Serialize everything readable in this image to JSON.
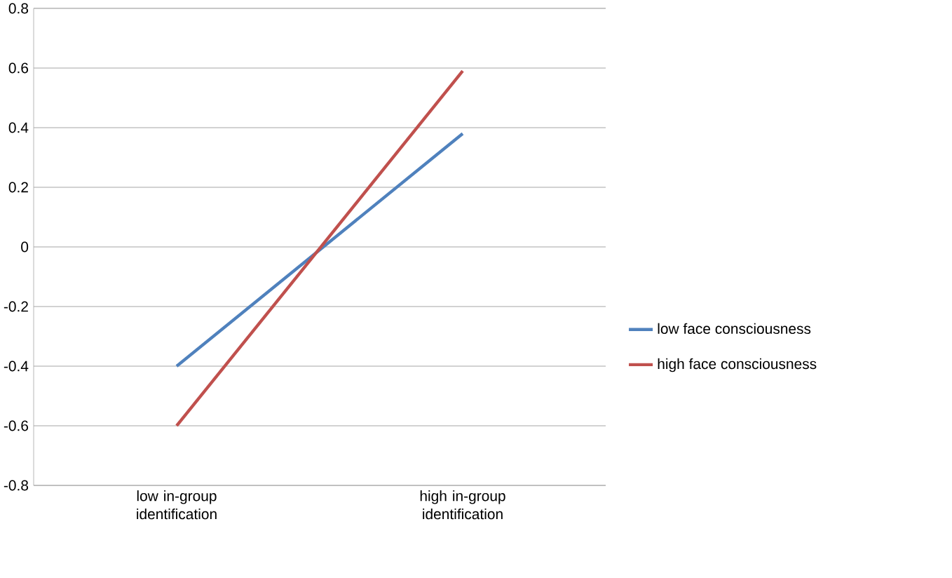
{
  "chart_data": {
    "type": "line",
    "categories": [
      "low in-group identification",
      "high in-group identification"
    ],
    "series": [
      {
        "name": "low face consciousness",
        "color": "#4f81bd",
        "values": [
          -0.4,
          0.38
        ]
      },
      {
        "name": "high face consciousness",
        "color": "#c0504d",
        "values": [
          -0.6,
          0.59
        ]
      }
    ],
    "ylim": [
      -0.8,
      0.8
    ],
    "yticks": [
      -0.8,
      -0.6,
      -0.4,
      -0.2,
      0,
      0.2,
      0.4,
      0.6,
      0.8
    ],
    "grid": "y",
    "legend": "right",
    "marker": "none",
    "line_style": "solid"
  }
}
